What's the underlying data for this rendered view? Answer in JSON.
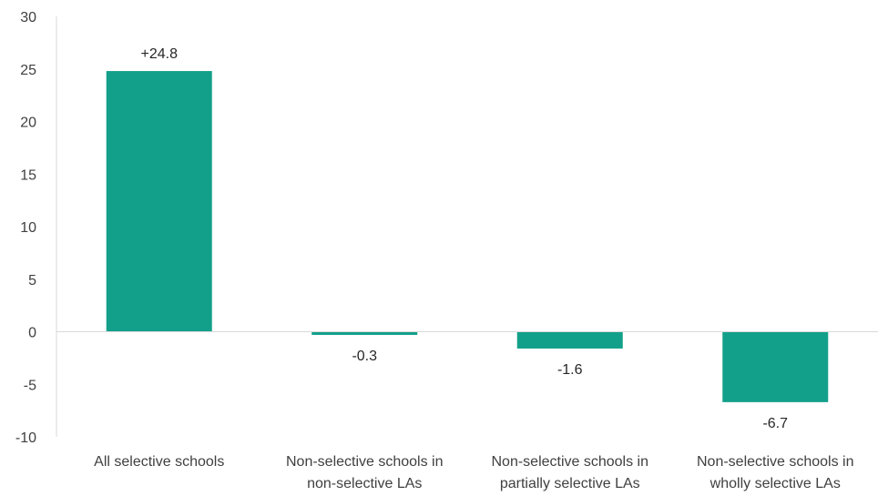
{
  "chart_data": {
    "type": "bar",
    "categories": [
      [
        "All selective schools"
      ],
      [
        "Non-selective schools in",
        "non-selective LAs"
      ],
      [
        "Non-selective schools in",
        "partially selective LAs"
      ],
      [
        "Non-selective schools in",
        "wholly selective LAs"
      ]
    ],
    "values": [
      24.8,
      -0.3,
      -1.6,
      -6.7
    ],
    "data_labels": [
      "+24.8",
      "-0.3",
      "-1.6",
      "-6.7"
    ],
    "ylim": [
      -10,
      30
    ],
    "yticks": [
      30,
      25,
      20,
      15,
      10,
      5,
      0,
      -5,
      -10
    ],
    "title": "",
    "xlabel": "",
    "ylabel": "",
    "bar_color": "#13a08a",
    "axis_color": "#d9d9d9",
    "grid": false,
    "legend": "none"
  }
}
